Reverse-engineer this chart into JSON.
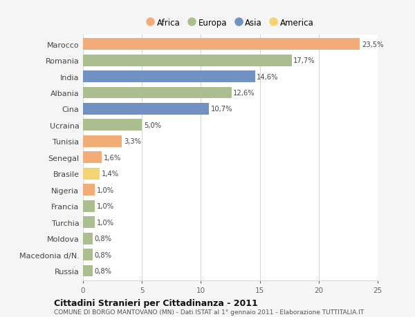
{
  "countries": [
    "Marocco",
    "Romania",
    "India",
    "Albania",
    "Cina",
    "Ucraina",
    "Tunisia",
    "Senegal",
    "Brasile",
    "Nigeria",
    "Francia",
    "Turchia",
    "Moldova",
    "Macedonia d/N.",
    "Russia"
  ],
  "values": [
    23.5,
    17.7,
    14.6,
    12.6,
    10.7,
    5.0,
    3.3,
    1.6,
    1.4,
    1.0,
    1.0,
    1.0,
    0.8,
    0.8,
    0.8
  ],
  "labels": [
    "23,5%",
    "17,7%",
    "14,6%",
    "12,6%",
    "10,7%",
    "5,0%",
    "3,3%",
    "1,6%",
    "1,4%",
    "1,0%",
    "1,0%",
    "1,0%",
    "0,8%",
    "0,8%",
    "0,8%"
  ],
  "continents": [
    "Africa",
    "Europa",
    "Asia",
    "Europa",
    "Asia",
    "Europa",
    "Africa",
    "Africa",
    "America",
    "Africa",
    "Europa",
    "Europa",
    "Europa",
    "Europa",
    "Europa"
  ],
  "colors": {
    "Africa": "#F2AC78",
    "Europa": "#ABBE90",
    "Asia": "#7191C2",
    "America": "#F2D472"
  },
  "legend_order": [
    "Africa",
    "Europa",
    "Asia",
    "America"
  ],
  "title": "Cittadini Stranieri per Cittadinanza - 2011",
  "subtitle": "COMUNE DI BORGO MANTOVANO (MN) - Dati ISTAT al 1° gennaio 2011 - Elaborazione TUTTITALIA.IT",
  "xlim": [
    0,
    25
  ],
  "xticks": [
    0,
    5,
    10,
    15,
    20,
    25
  ],
  "background_color": "#f5f5f5",
  "plot_bg": "#ffffff",
  "grid_color": "#d8d8d8",
  "bar_height": 0.72
}
